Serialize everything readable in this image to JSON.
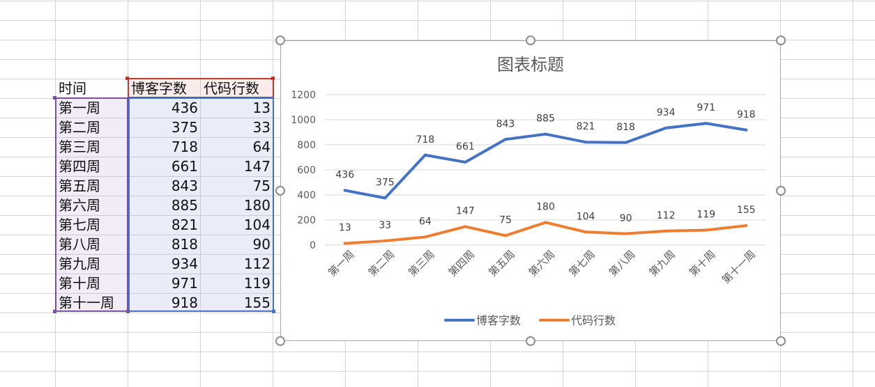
{
  "sheet": {
    "headers": [
      "时间",
      "博客字数",
      "代码行数"
    ],
    "rows": [
      {
        "label": "第一周",
        "blog": "436",
        "code": "13"
      },
      {
        "label": "第二周",
        "blog": "375",
        "code": "33"
      },
      {
        "label": "第三周",
        "blog": "718",
        "code": "64"
      },
      {
        "label": "第四周",
        "blog": "661",
        "code": "147"
      },
      {
        "label": "第五周",
        "blog": "843",
        "code": "75"
      },
      {
        "label": "第六周",
        "blog": "885",
        "code": "180"
      },
      {
        "label": "第七周",
        "blog": "821",
        "code": "104"
      },
      {
        "label": "第八周",
        "blog": "818",
        "code": "90"
      },
      {
        "label": "第九周",
        "blog": "934",
        "code": "112"
      },
      {
        "label": "第十周",
        "blog": "971",
        "code": "119"
      },
      {
        "label": "第十一周",
        "blog": "918",
        "code": "155"
      }
    ]
  },
  "chart_data": {
    "type": "line",
    "title": "图表标题",
    "categories": [
      "第一周",
      "第二周",
      "第三周",
      "第四周",
      "第五周",
      "第六周",
      "第七周",
      "第八周",
      "第九周",
      "第十周",
      "第十一周"
    ],
    "series": [
      {
        "name": "博客字数",
        "values": [
          436,
          375,
          718,
          661,
          843,
          885,
          821,
          818,
          934,
          971,
          918
        ],
        "color": "#4472c4"
      },
      {
        "name": "代码行数",
        "values": [
          13,
          33,
          64,
          147,
          75,
          180,
          104,
          90,
          112,
          119,
          155
        ],
        "color": "#ed7d31"
      }
    ],
    "yticks": [
      0,
      200,
      400,
      600,
      800,
      1000,
      1200
    ],
    "ylim": [
      0,
      1200
    ],
    "grid": true,
    "legend": "bottom",
    "data_labels": true
  }
}
